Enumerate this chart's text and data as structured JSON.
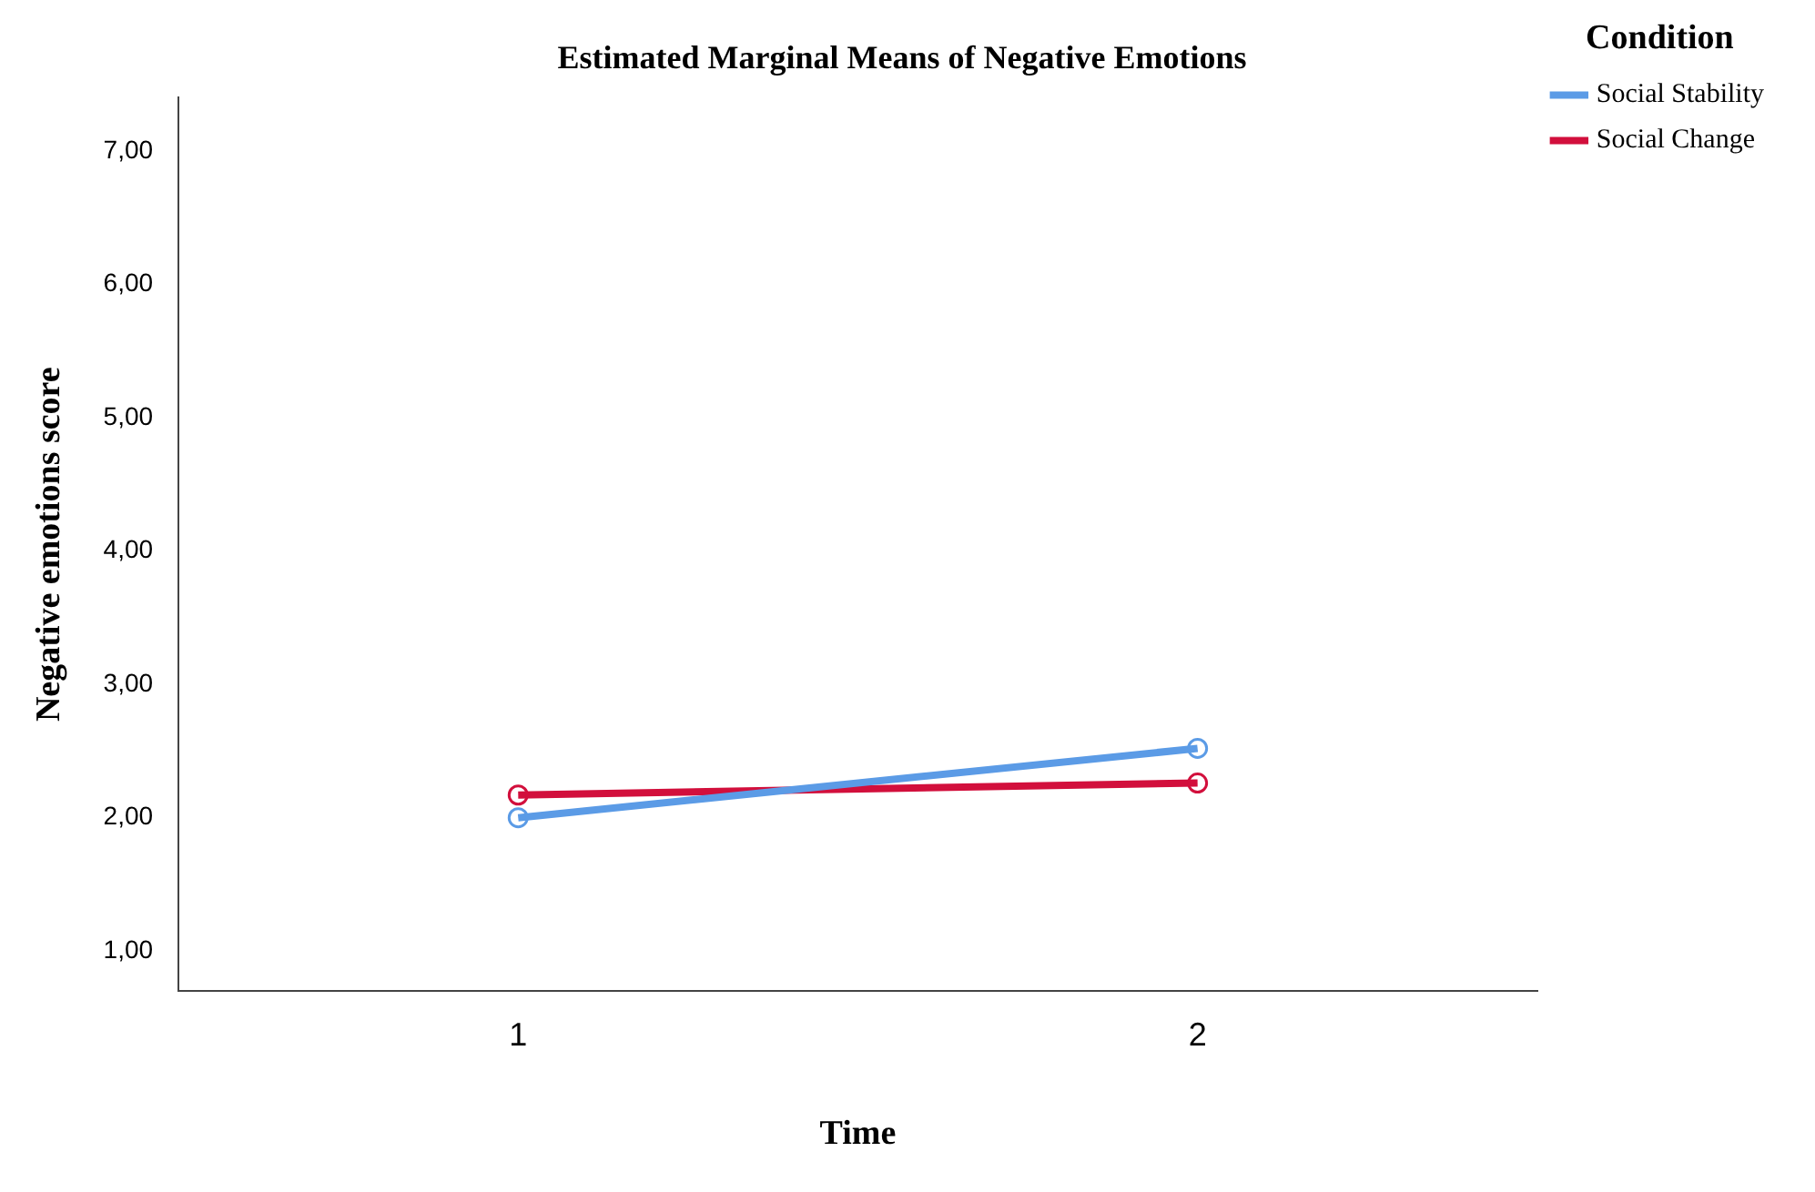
{
  "chart_data": {
    "type": "line",
    "title": "Estimated Marginal Means of Negative Emotions",
    "xlabel": "Time",
    "ylabel": "Negative emotions score",
    "legend_title": "Condition",
    "categories": [
      "1",
      "2"
    ],
    "series": [
      {
        "name": "Social Stability",
        "color": "#5b9be6",
        "values": [
          2.0,
          2.52
        ]
      },
      {
        "name": "Social Change",
        "color": "#d20f3c",
        "values": [
          2.17,
          2.26
        ]
      }
    ],
    "ylim": [
      0.7,
      7.4
    ],
    "yticks": [
      {
        "value": 1,
        "label": "1,00"
      },
      {
        "value": 2,
        "label": "2,00"
      },
      {
        "value": 3,
        "label": "3,00"
      },
      {
        "value": 4,
        "label": "4,00"
      },
      {
        "value": 5,
        "label": "5,00"
      },
      {
        "value": 6,
        "label": "6,00"
      },
      {
        "value": 7,
        "label": "7,00"
      }
    ],
    "grid": false,
    "legend": "top right",
    "marker": "circle",
    "line_style": "solid"
  }
}
